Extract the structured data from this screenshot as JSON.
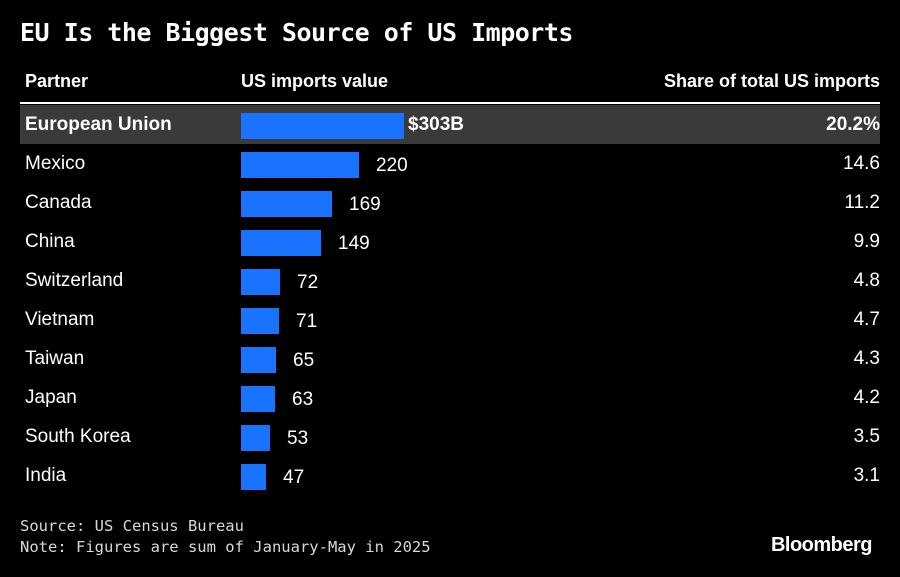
{
  "title": "EU Is the Biggest Source of US Imports",
  "headers": {
    "partner": "Partner",
    "value": "US imports value",
    "share": "Share of total US imports"
  },
  "chart_data": {
    "type": "bar",
    "orientation": "horizontal",
    "categories": [
      "European Union",
      "Mexico",
      "Canada",
      "China",
      "Switzerland",
      "Vietnam",
      "Taiwan",
      "Japan",
      "South Korea",
      "India"
    ],
    "values": [
      303,
      220,
      169,
      149,
      72,
      71,
      65,
      63,
      53,
      47
    ],
    "value_labels": [
      "$303B",
      "220",
      "169",
      "149",
      "72",
      "71",
      "65",
      "63",
      "53",
      "47"
    ],
    "share_labels": [
      "20.2%",
      "14.6",
      "11.2",
      "9.9",
      "4.8",
      "4.7",
      "4.3",
      "4.2",
      "3.5",
      "3.1"
    ],
    "highlight_index": 0,
    "bar_color": "#1a73ff",
    "highlight_row_color": "#3a3a3a"
  },
  "footer": {
    "source": "Source: US Census Bureau",
    "note": "Note: Figures are sum of January-May in 2025",
    "brand": "Bloomberg"
  }
}
